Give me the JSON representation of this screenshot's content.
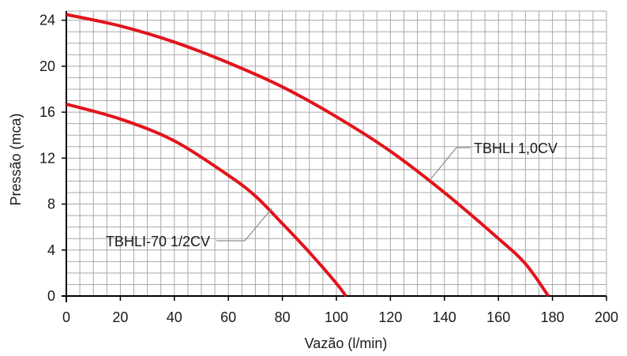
{
  "chart_data": {
    "type": "line",
    "title": "",
    "xlabel": "Vazão (l/min)",
    "ylabel": "Pressão (mca)",
    "xlim": [
      0,
      200
    ],
    "ylim": [
      0,
      24.8
    ],
    "grid": true,
    "x_ticks": [
      0,
      20,
      40,
      60,
      80,
      100,
      120,
      140,
      160,
      180,
      200
    ],
    "y_ticks": [
      0,
      4,
      8,
      12,
      16,
      20,
      24
    ],
    "x_tick_labels": [
      "0",
      "20",
      "40",
      "60",
      "80",
      "100",
      "120",
      "140",
      "160",
      "180",
      "200"
    ],
    "y_tick_labels": [
      "0",
      "4",
      "8",
      "12",
      "16",
      "20",
      "24"
    ],
    "series_color": "#e2141c",
    "grid_color": "#a9a9a9",
    "series": [
      {
        "name": "TBHLI 1,0CV",
        "x": [
          0,
          20,
          40,
          60,
          80,
          100,
          120,
          140,
          160,
          170,
          178.5
        ],
        "y": [
          24.5,
          23.5,
          22.1,
          20.3,
          18.2,
          15.6,
          12.6,
          9.0,
          5.0,
          2.8,
          0
        ]
      },
      {
        "name": "TBHLI-70 1/2CV",
        "x": [
          0,
          20,
          40,
          60,
          70,
          80,
          90,
          100,
          103.5
        ],
        "y": [
          16.7,
          15.4,
          13.5,
          10.5,
          8.7,
          6.3,
          3.8,
          1.1,
          0
        ]
      }
    ],
    "annotations": [
      {
        "text": "TBHLI 1,0CV",
        "series": "TBHLI 1,0CV"
      },
      {
        "text": "TBHLI-70 1/2CV",
        "series": "TBHLI-70 1/2CV"
      }
    ]
  }
}
